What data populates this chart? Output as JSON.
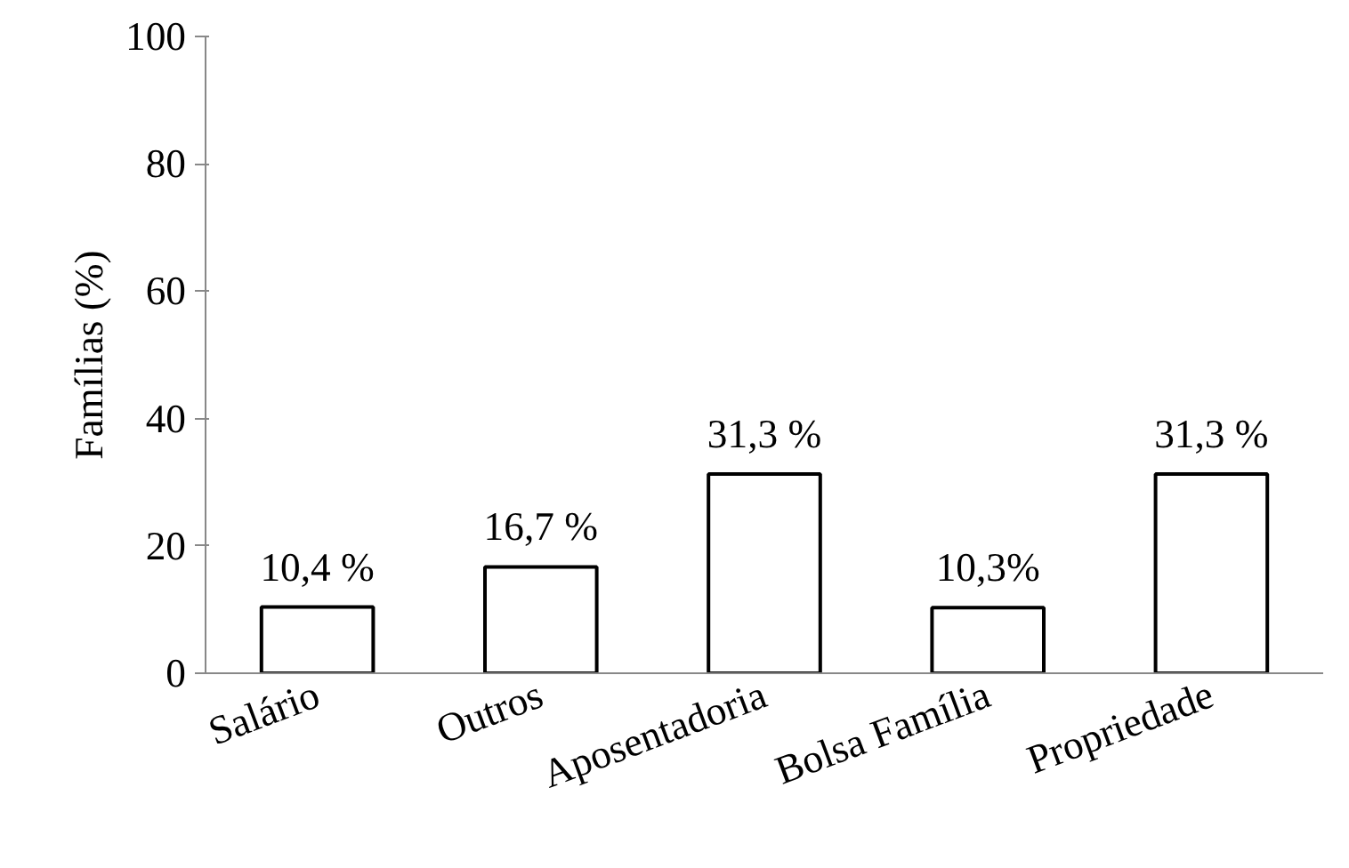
{
  "chart_data": {
    "type": "bar",
    "ylabel": "Famílias (%)",
    "categories": [
      "Salário",
      "Outros",
      "Aposentadoria",
      "Bolsa Família",
      "Propriedade"
    ],
    "values": [
      10.4,
      16.7,
      31.3,
      10.3,
      31.3
    ],
    "value_labels": [
      "10,4 %",
      "16,7 %",
      "31,3 %",
      "10,3%",
      "31,3 %"
    ],
    "color": "#ffffff",
    "ylim": [
      0,
      100
    ],
    "yticks": [
      0,
      20,
      40,
      60,
      80,
      100
    ],
    "grid": false
  }
}
